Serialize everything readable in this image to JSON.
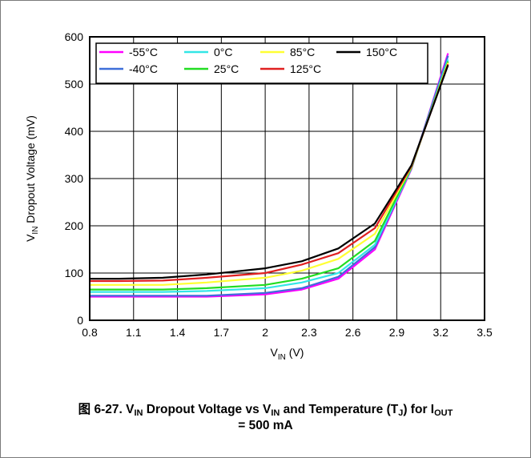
{
  "chart_data": {
    "type": "line",
    "xlabel": "V",
    "xlabel_sub": "IN",
    "xlabel_unit": " (V)",
    "ylabel": "V",
    "ylabel_sub": "IN",
    "ylabel_rest": " Dropout Voltage (mV)",
    "xlim": [
      0.8,
      3.5
    ],
    "ylim": [
      0,
      600
    ],
    "xticks": [
      "0.8",
      "1.1",
      "1.4",
      "1.7",
      "2",
      "2.3",
      "2.6",
      "2.9",
      "3.2",
      "3.5"
    ],
    "yticks": [
      "0",
      "100",
      "200",
      "300",
      "400",
      "500",
      "600"
    ],
    "grid": true,
    "legend_position": "top-left",
    "x": [
      0.8,
      1.0,
      1.3,
      1.6,
      2.0,
      2.25,
      2.5,
      2.75,
      3.0,
      3.25
    ],
    "series": [
      {
        "name": "-55°C",
        "color": "#ff00ff",
        "values": [
          50,
          50,
          50,
          50,
          55,
          65,
          88,
          150,
          320,
          565
        ]
      },
      {
        "name": "-40°C",
        "color": "#3d6fd9",
        "values": [
          52,
          52,
          52,
          52,
          58,
          68,
          92,
          155,
          322,
          560
        ]
      },
      {
        "name": "0°C",
        "color": "#33e6e6",
        "values": [
          60,
          60,
          60,
          62,
          68,
          80,
          100,
          160,
          322,
          552
        ]
      },
      {
        "name": "25°C",
        "color": "#22dd22",
        "values": [
          65,
          65,
          65,
          68,
          75,
          88,
          110,
          168,
          323,
          548
        ]
      },
      {
        "name": "85°C",
        "color": "#ffff33",
        "values": [
          75,
          75,
          75,
          80,
          90,
          105,
          130,
          183,
          325,
          545
        ]
      },
      {
        "name": "125°C",
        "color": "#e02020",
        "values": [
          83,
          83,
          84,
          90,
          100,
          118,
          142,
          195,
          326,
          542
        ]
      },
      {
        "name": "150°C",
        "color": "#000000",
        "values": [
          88,
          88,
          90,
          97,
          110,
          125,
          152,
          205,
          328,
          540
        ]
      }
    ]
  },
  "caption": {
    "prefix": "图 6-27. V",
    "sub1": "IN",
    "mid1": " Dropout Voltage vs V",
    "sub2": "IN",
    "mid2": " and Temperature (T",
    "sub3": "J",
    "mid3": ") for I",
    "sub4": "OUT",
    "line2": "= 500 mA"
  }
}
